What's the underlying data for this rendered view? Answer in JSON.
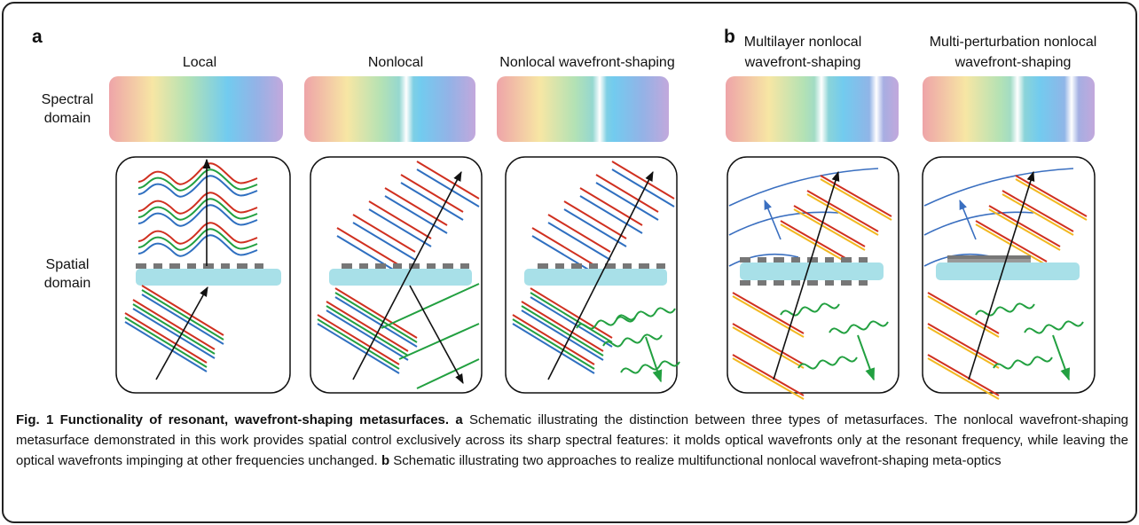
{
  "panels": [
    {
      "label": "a"
    },
    {
      "label": "b"
    }
  ],
  "columns": [
    {
      "title": [
        "Local"
      ]
    },
    {
      "title": [
        "Nonlocal"
      ]
    },
    {
      "title": [
        "Nonlocal wavefront-shaping"
      ]
    },
    {
      "title": [
        "Multilayer nonlocal",
        "wavefront-shaping"
      ]
    },
    {
      "title": [
        "Multi-perturbation nonlocal",
        "wavefront-shaping"
      ]
    }
  ],
  "row_labels": [
    [
      "Spectral",
      "domain"
    ],
    [
      "Spatial",
      "domain"
    ]
  ],
  "caption": {
    "title": "Fig. 1 Functionality of resonant, wavefront-shaping metasurfaces.",
    "parts": [
      {
        "label": "a",
        "text": "Schematic illustrating the distinction between three types of metasurfaces. The nonlocal wavefront-shaping metasurface demonstrated in this work provides spatial control exclusively across its sharp spectral features: it molds optical wavefronts only at the resonant frequency, while leaving the optical wavefronts impinging at other frequencies unchanged."
      },
      {
        "label": "b",
        "text": "Schematic illustrating two approaches to realize multifunctional nonlocal wavefront-shaping meta-optics"
      }
    ]
  }
}
